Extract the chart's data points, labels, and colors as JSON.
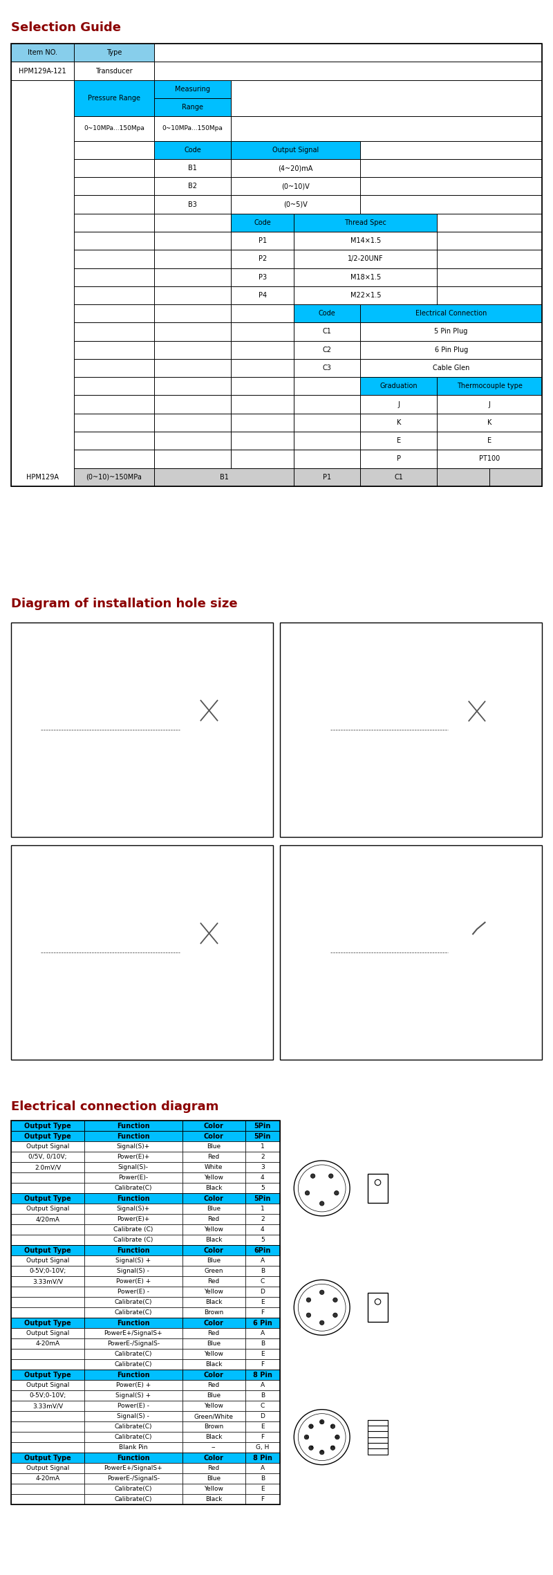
{
  "title1": "Selection Guide",
  "title2": "Diagram of installation hole size",
  "title3": "Electrical connection diagram",
  "title_color": "#8B0000",
  "cyan": "#00BFFF",
  "lcyan": "#87CEEB",
  "gray_bg": "#CCCCCC",
  "white": "#FFFFFF",
  "black": "#000000",
  "fig_w": 8.0,
  "fig_h": 22.77,
  "dpi": 100,
  "sections": [
    {
      "pin_label": "5Pin",
      "output_type_lines": [
        "Output Signal",
        "0/5V, 0/10V;",
        "2.0mV/V"
      ],
      "rows": [
        [
          "Output Signal",
          "Signal(S)+",
          "Blue",
          "1"
        ],
        [
          "",
          "Power(E)+",
          "Red",
          "2"
        ],
        [
          "",
          "Signal(S)-",
          "White",
          "3"
        ],
        [
          "",
          "Power(E)-",
          "Yellow",
          "4"
        ],
        [
          "",
          "Calibrate(C)",
          "Black",
          "5"
        ]
      ]
    },
    {
      "pin_label": "5Pin",
      "output_type_lines": [
        "Output Signal",
        "4/20mA"
      ],
      "rows": [
        [
          "Output Signal",
          "Signal(S)+",
          "Blue",
          "1"
        ],
        [
          "",
          "Power(E)+",
          "Red",
          "2"
        ],
        [
          "",
          "Calibrate (C)",
          "Yellow",
          "4"
        ],
        [
          "",
          "Calibrate (C)",
          "Black",
          "5"
        ]
      ]
    },
    {
      "pin_label": "6Pin",
      "output_type_lines": [
        "Output Signal",
        "0-5V;0-10V;",
        "3.33mV/V"
      ],
      "rows": [
        [
          "Output Signal",
          "Signal(S) +",
          "Blue",
          "A"
        ],
        [
          "",
          "Signal(S) -",
          "Green",
          "B"
        ],
        [
          "",
          "Power(E) +",
          "Red",
          "C"
        ],
        [
          "",
          "Power(E) -",
          "Yellow",
          "D"
        ],
        [
          "",
          "Calibrate(C)",
          "Black",
          "E"
        ],
        [
          "",
          "Calibrate(C)",
          "Brown",
          "F"
        ]
      ]
    },
    {
      "pin_label": "6 Pin",
      "output_type_lines": [
        "Output Signal",
        "4-20mA"
      ],
      "rows": [
        [
          "Output Signal",
          "PowerE+/SignalS+",
          "Red",
          "A"
        ],
        [
          "",
          "PowerE-/SignalS-",
          "Blue",
          "B"
        ],
        [
          "",
          "Calibrate(C)",
          "Yellow",
          "E"
        ],
        [
          "",
          "Calibrate(C)",
          "Black",
          "F"
        ]
      ]
    },
    {
      "pin_label": "8 Pin",
      "output_type_lines": [
        "Output Signal",
        "0-5V;0-10V;",
        "3.33mV/V"
      ],
      "rows": [
        [
          "Output Signal",
          "Power(E) +",
          "Red",
          "A"
        ],
        [
          "",
          "Signal(S) +",
          "Blue",
          "B"
        ],
        [
          "",
          "Power(E) -",
          "Yellow",
          "C"
        ],
        [
          "",
          "Signal(S) -",
          "Green/White",
          "D"
        ],
        [
          "",
          "Calibrate(C)",
          "Brown",
          "E"
        ],
        [
          "",
          "Calibrate(C)",
          "Black",
          "F"
        ],
        [
          "",
          "Blank Pin",
          "--",
          "G, H"
        ]
      ]
    },
    {
      "pin_label": "8 Pin",
      "output_type_lines": [
        "Output Signal",
        "4-20mA"
      ],
      "rows": [
        [
          "Output Signal",
          "PowerE+/SignalS+",
          "Red",
          "A"
        ],
        [
          "",
          "PowerE-/SignalS-",
          "Blue",
          "B"
        ],
        [
          "",
          "Calibrate(C)",
          "Yellow",
          "E"
        ],
        [
          "",
          "Calibrate(C)",
          "Black",
          "F"
        ]
      ]
    }
  ]
}
